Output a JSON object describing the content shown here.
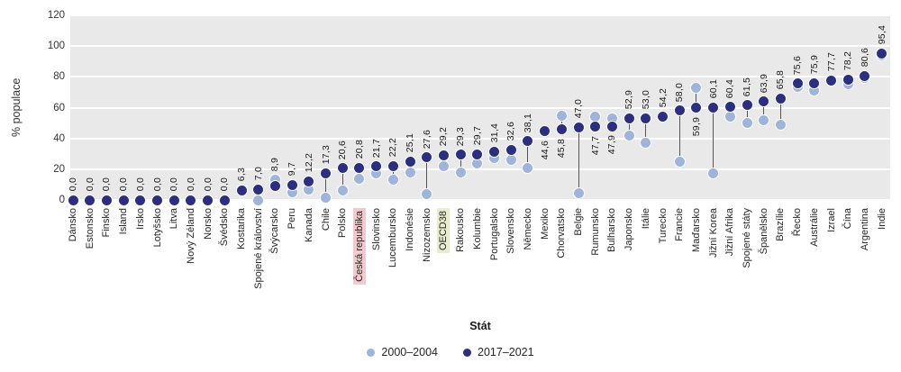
{
  "chart_data": {
    "type": "dumbbell-scatter",
    "title": "",
    "ylabel": "% populace",
    "xlabel": "Stát",
    "ylim": [
      0,
      120
    ],
    "yticks": [
      0,
      20,
      40,
      60,
      80,
      100,
      120
    ],
    "grid": true,
    "legend_position": "bottom-center",
    "legend": [
      {
        "name": "2000–2004",
        "color": "#9FB4DA"
      },
      {
        "name": "2017–2021",
        "color": "#2A2F7F"
      }
    ],
    "colors": {
      "plot_background": "#E9E9E9",
      "gridline": "#FFFFFF",
      "connector_line": "#555555",
      "highlight_ceska_republika": "#F2C9CF",
      "highlight_oecd38": "#E9EDCB",
      "label_text": "#1A1A1A"
    },
    "points": [
      {
        "country": "Dánsko",
        "label": "0,0",
        "v2000": 0,
        "v2017": 0,
        "label_below": false,
        "highlight": null
      },
      {
        "country": "Estonsko",
        "label": "0,0",
        "v2000": 0,
        "v2017": 0,
        "label_below": false,
        "highlight": null
      },
      {
        "country": "Finsko",
        "label": "0,0",
        "v2000": 0,
        "v2017": 0,
        "label_below": false,
        "highlight": null
      },
      {
        "country": "Island",
        "label": "0,0",
        "v2000": 0,
        "v2017": 0,
        "label_below": false,
        "highlight": null
      },
      {
        "country": "Irsko",
        "label": "0,0",
        "v2000": 0,
        "v2017": 0,
        "label_below": false,
        "highlight": null
      },
      {
        "country": "Lotyšsko",
        "label": "0,0",
        "v2000": 0,
        "v2017": 0,
        "label_below": false,
        "highlight": null
      },
      {
        "country": "Litva",
        "label": "0,0",
        "v2000": 0,
        "v2017": 0,
        "label_below": false,
        "highlight": null
      },
      {
        "country": "Nový Zéland",
        "label": "0,0",
        "v2000": 0,
        "v2017": 0,
        "label_below": false,
        "highlight": null
      },
      {
        "country": "Norsko",
        "label": "0,0",
        "v2000": 0,
        "v2017": 0,
        "label_below": false,
        "highlight": null
      },
      {
        "country": "Švédsko",
        "label": "0,0",
        "v2000": 0,
        "v2017": 0,
        "label_below": false,
        "highlight": null
      },
      {
        "country": "Kostarika",
        "label": "6,3",
        "v2000": 6.3,
        "v2017": 6.3,
        "label_below": false,
        "highlight": null
      },
      {
        "country": "Spojené království",
        "label": "7,0",
        "v2000": 0,
        "v2017": 7.0,
        "label_below": false,
        "highlight": null
      },
      {
        "country": "Švýcarsko",
        "label": "8,9",
        "v2000": 13,
        "v2017": 8.9,
        "label_below": false,
        "highlight": null
      },
      {
        "country": "Peru",
        "label": "9,7",
        "v2000": 5,
        "v2017": 9.7,
        "label_below": false,
        "highlight": null
      },
      {
        "country": "Kanada",
        "label": "12,2",
        "v2000": 6.5,
        "v2017": 12.2,
        "label_below": false,
        "highlight": null
      },
      {
        "country": "Chile",
        "label": "17,3",
        "v2000": 1.5,
        "v2017": 17.3,
        "label_below": false,
        "highlight": null
      },
      {
        "country": "Polsko",
        "label": "20,6",
        "v2000": 6,
        "v2017": 20.6,
        "label_below": false,
        "highlight": null
      },
      {
        "country": "Česká republika",
        "label": "20,8",
        "v2000": 14,
        "v2017": 20.8,
        "label_below": false,
        "highlight": "cz"
      },
      {
        "country": "Slovinsko",
        "label": "21,7",
        "v2000": 17,
        "v2017": 21.7,
        "label_below": false,
        "highlight": null
      },
      {
        "country": "Lucembursko",
        "label": "22,2",
        "v2000": 13,
        "v2017": 22.2,
        "label_below": false,
        "highlight": null
      },
      {
        "country": "Indonésie",
        "label": "25,1",
        "v2000": 18,
        "v2017": 25.1,
        "label_below": false,
        "highlight": null
      },
      {
        "country": "Nizozemsko",
        "label": "27,6",
        "v2000": 4,
        "v2017": 27.6,
        "label_below": false,
        "highlight": null
      },
      {
        "country": "OECD38",
        "label": "29,2",
        "v2000": 22,
        "v2017": 29.2,
        "label_below": false,
        "highlight": "oecd"
      },
      {
        "country": "Rakousko",
        "label": "29,3",
        "v2000": 18,
        "v2017": 29.3,
        "label_below": false,
        "highlight": null
      },
      {
        "country": "Kolumbie",
        "label": "29,7",
        "v2000": 24,
        "v2017": 29.7,
        "label_below": false,
        "highlight": null
      },
      {
        "country": "Portugalsko",
        "label": "31,4",
        "v2000": 27.5,
        "v2017": 31.4,
        "label_below": false,
        "highlight": null
      },
      {
        "country": "Slovensko",
        "label": "32,6",
        "v2000": 26,
        "v2017": 32.6,
        "label_below": false,
        "highlight": null
      },
      {
        "country": "Německo",
        "label": "38,1",
        "v2000": 20.5,
        "v2017": 38.1,
        "label_below": false,
        "highlight": null
      },
      {
        "country": "Mexiko",
        "label": "44,6",
        "v2000": 44.6,
        "v2017": 44.6,
        "label_below": true,
        "highlight": null
      },
      {
        "country": "Chorvatsko",
        "label": "45,8",
        "v2000": 55,
        "v2017": 45.8,
        "label_below": true,
        "highlight": null
      },
      {
        "country": "Belgie",
        "label": "47,0",
        "v2000": 4.5,
        "v2017": 47.0,
        "label_below": false,
        "highlight": null
      },
      {
        "country": "Rumunsko",
        "label": "47,7",
        "v2000": 54,
        "v2017": 47.7,
        "label_below": true,
        "highlight": null
      },
      {
        "country": "Bulharsko",
        "label": "47,9",
        "v2000": 53,
        "v2017": 47.9,
        "label_below": true,
        "highlight": null
      },
      {
        "country": "Japonsko",
        "label": "52,9",
        "v2000": 42,
        "v2017": 52.9,
        "label_below": false,
        "highlight": null
      },
      {
        "country": "Itálie",
        "label": "53,0",
        "v2000": 37,
        "v2017": 53.0,
        "label_below": false,
        "highlight": null
      },
      {
        "country": "Turecko",
        "label": "54,2",
        "v2000": 54.2,
        "v2017": 54.2,
        "label_below": false,
        "highlight": null
      },
      {
        "country": "Francie",
        "label": "58,0",
        "v2000": 25,
        "v2017": 58.0,
        "label_below": false,
        "highlight": null
      },
      {
        "country": "Maďarsko",
        "label": "59,9",
        "v2000": 73,
        "v2017": 59.9,
        "label_below": true,
        "highlight": null
      },
      {
        "country": "Jižní Korea",
        "label": "60,1",
        "v2000": 17,
        "v2017": 60.1,
        "label_below": false,
        "highlight": null
      },
      {
        "country": "Jižní Afrika",
        "label": "60,4",
        "v2000": 54,
        "v2017": 60.4,
        "label_below": false,
        "highlight": null
      },
      {
        "country": "Spojené státy",
        "label": "61,5",
        "v2000": 50,
        "v2017": 61.5,
        "label_below": false,
        "highlight": null
      },
      {
        "country": "Španělsko",
        "label": "63,9",
        "v2000": 52,
        "v2017": 63.9,
        "label_below": false,
        "highlight": null
      },
      {
        "country": "Brazílie",
        "label": "65,8",
        "v2000": 49,
        "v2017": 65.8,
        "label_below": false,
        "highlight": null
      },
      {
        "country": "Řecko",
        "label": "75,6",
        "v2000": 73.5,
        "v2017": 75.6,
        "label_below": false,
        "highlight": null
      },
      {
        "country": "Austrálie",
        "label": "75,9",
        "v2000": 71,
        "v2017": 75.9,
        "label_below": false,
        "highlight": null
      },
      {
        "country": "Izrael",
        "label": "77,7",
        "v2000": 77.7,
        "v2017": 77.7,
        "label_below": false,
        "highlight": null
      },
      {
        "country": "Čína",
        "label": "78,2",
        "v2000": 75.5,
        "v2017": 78.2,
        "label_below": false,
        "highlight": null
      },
      {
        "country": "Argentina",
        "label": "80,6",
        "v2000": 79.5,
        "v2017": 80.6,
        "label_below": false,
        "highlight": null
      },
      {
        "country": "Indie",
        "label": "95,4",
        "v2000": 94,
        "v2017": 95.4,
        "label_below": false,
        "highlight": null
      }
    ]
  }
}
